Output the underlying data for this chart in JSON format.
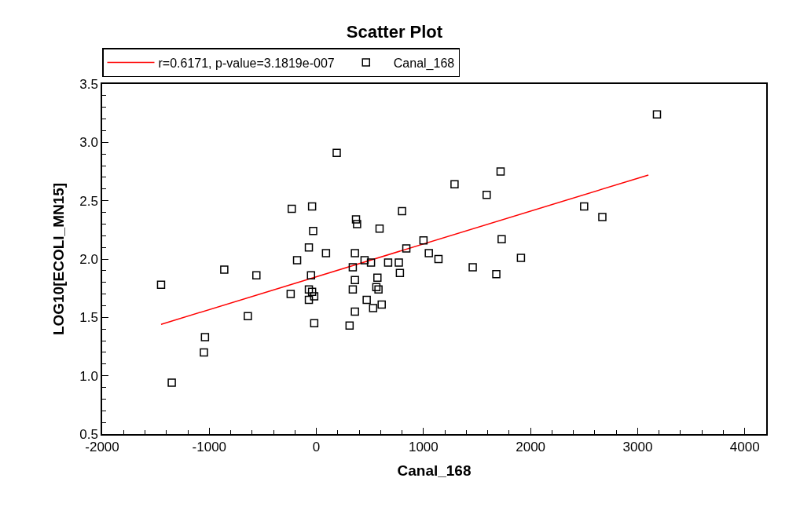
{
  "chart_data": {
    "type": "scatter",
    "title": "Scatter Plot",
    "xlabel": "Canal_168",
    "ylabel": "LOG10[ECOLI_MN15]",
    "xlim": [
      -2000,
      4200
    ],
    "xticks": [
      -2000,
      -1000,
      0,
      1000,
      2000,
      3000,
      4000
    ],
    "ylim": [
      0.5,
      3.5
    ],
    "yticks": [
      0.5,
      {
        "value": 1,
        "label": "1.0"
      },
      1.5,
      {
        "value": 2,
        "label": "2.0"
      },
      2.5,
      {
        "value": 3,
        "label": "3.0"
      },
      3.5
    ],
    "legend": "top",
    "series": [
      {
        "name": "r=0.6171, p-value=3.1819e-007",
        "type": "line",
        "color": "#ff0000",
        "x": [
          -1450,
          3100
        ],
        "values": [
          1.44,
          2.72
        ]
      },
      {
        "name": "Canal_168",
        "marker": "square",
        "color": "#000000",
        "x": [
          -1450,
          -1350,
          -1050,
          -1040,
          -860,
          -560,
          -640,
          -230,
          -40,
          -30,
          -70,
          90,
          -180,
          -50,
          -240,
          -70,
          -40,
          -20,
          -70,
          -20,
          190,
          370,
          380,
          590,
          800,
          360,
          450,
          510,
          340,
          670,
          770,
          780,
          360,
          340,
          570,
          560,
          580,
          470,
          530,
          610,
          360,
          310,
          840,
          1000,
          1050,
          1140,
          3180,
          1720,
          1290,
          1590,
          2500,
          2670,
          1730,
          1910,
          1460,
          1680
        ],
        "values": [
          1.78,
          0.94,
          1.2,
          1.33,
          1.91,
          1.86,
          1.51,
          2.43,
          2.45,
          2.24,
          2.1,
          2.05,
          1.99,
          1.86,
          1.7,
          1.74,
          1.72,
          1.68,
          1.65,
          1.45,
          2.91,
          2.34,
          2.3,
          2.26,
          2.41,
          2.05,
          1.99,
          1.97,
          1.93,
          1.97,
          1.97,
          1.88,
          1.82,
          1.74,
          1.84,
          1.76,
          1.74,
          1.65,
          1.58,
          1.61,
          1.55,
          1.43,
          2.09,
          2.16,
          2.05,
          2.0,
          3.24,
          2.75,
          2.64,
          2.55,
          2.45,
          2.36,
          2.17,
          2.01,
          1.93,
          1.87
        ]
      }
    ]
  }
}
